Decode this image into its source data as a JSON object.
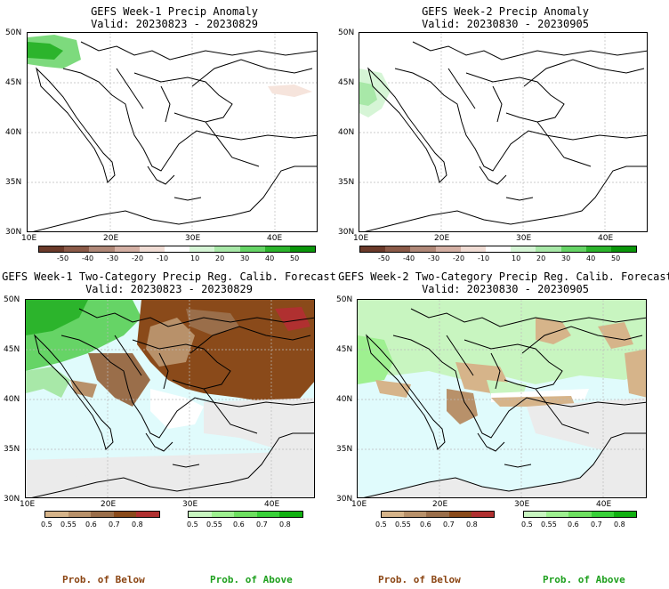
{
  "panels": [
    {
      "title": "GEFS Week-1 Precip Anomaly",
      "valid": "Valid: 20230823 - 20230829"
    },
    {
      "title": "GEFS Week-2 Precip Anomaly",
      "valid": "Valid: 20230830 - 20230905"
    },
    {
      "title": "GEFS Week-1 Two-Category Precip Reg. Calib. Forecast",
      "valid": "Valid: 20230823 - 20230829"
    },
    {
      "title": "GEFS Week-2 Two-Category Precip Reg. Calib. Forecast",
      "valid": "Valid: 20230830 - 20230905"
    }
  ],
  "lat_labels": [
    "50N",
    "45N",
    "40N",
    "35N",
    "30N"
  ],
  "lon_labels": [
    "10E",
    "20E",
    "30E",
    "40E"
  ],
  "anomaly_scale": {
    "labels": [
      "-50",
      "-40",
      "-30",
      "-20",
      "-10",
      "10",
      "20",
      "30",
      "40",
      "50"
    ],
    "colors": [
      "#6b3a2a",
      "#8b5a48",
      "#b08878",
      "#d4b0a4",
      "#f0dcd4",
      "#ffffff",
      "#d6f5d6",
      "#a8e8a8",
      "#66d466",
      "#2cb42c",
      "#0a960a"
    ]
  },
  "below_scale": {
    "labels": [
      "0.5",
      "0.55",
      "0.6",
      "0.7",
      "0.8"
    ],
    "colors": [
      "#d6b48a",
      "#b8916a",
      "#9a6e4a",
      "#8a4a1a",
      "#b03030"
    ]
  },
  "above_scale": {
    "labels": [
      "0.5",
      "0.55",
      "0.6",
      "0.7",
      "0.8"
    ],
    "colors": [
      "#c8f5c0",
      "#9ef090",
      "#6ee060",
      "#38d038",
      "#10b010"
    ]
  },
  "footer": {
    "below1": "Prob. of Below",
    "above1": "Prob. of Above",
    "below2": "Prob. of Below",
    "above2": "Prob. of Above"
  },
  "colors": {
    "below_text": "#8b4513",
    "above_text": "#1ea01e"
  }
}
